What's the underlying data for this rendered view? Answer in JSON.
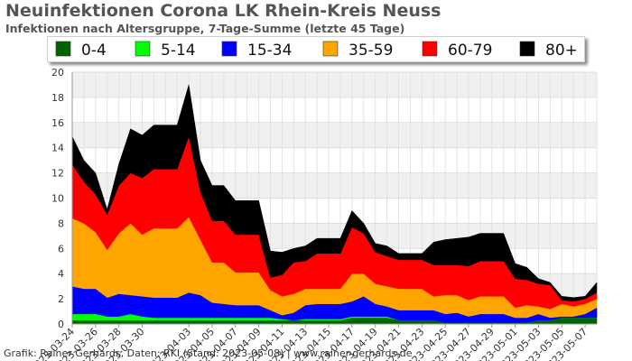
{
  "title": "Neuinfektionen Corona LK Rhein-Kreis Neuss",
  "subtitle": "Infektionen nach Altersgruppe, 7-Tage-Summe (letzte 45 Tage)",
  "credit": "Grafik: Rainer Gerhards, Daten: RKI (Stand: 2023-05-08) | www.rainer-gerhards.de",
  "chart_data": {
    "type": "area",
    "stacked": true,
    "title": "Neuinfektionen Corona LK Rhein-Kreis Neuss",
    "subtitle": "Infektionen nach Altersgruppe, 7-Tage-Summe (letzte 45 Tage)",
    "xlabel": "",
    "ylabel": "",
    "ylim": [
      0,
      20
    ],
    "yticks": [
      0,
      2,
      4,
      6,
      8,
      10,
      12,
      14,
      16,
      18,
      20
    ],
    "grid": true,
    "legend_position": "top",
    "x": [
      "2023-03-24",
      "2023-03-25",
      "2023-03-26",
      "2023-03-27",
      "2023-03-28",
      "2023-03-29",
      "2023-03-30",
      "2023-03-31",
      "2023-04-01",
      "2023-04-02",
      "2023-04-03",
      "2023-04-04",
      "2023-04-05",
      "2023-04-06",
      "2023-04-07",
      "2023-04-08",
      "2023-04-09",
      "2023-04-10",
      "2023-04-11",
      "2023-04-12",
      "2023-04-13",
      "2023-04-14",
      "2023-04-15",
      "2023-04-16",
      "2023-04-17",
      "2023-04-18",
      "2023-04-19",
      "2023-04-20",
      "2023-04-21",
      "2023-04-22",
      "2023-04-23",
      "2023-04-24",
      "2023-04-25",
      "2023-04-26",
      "2023-04-27",
      "2023-04-28",
      "2023-04-29",
      "2023-04-30",
      "2023-05-01",
      "2023-05-02",
      "2023-05-03",
      "2023-05-04",
      "2023-05-05",
      "2023-05-06",
      "2023-05-07",
      "2023-05-08"
    ],
    "xtick_labels": [
      "2023-03-24",
      "2023-03-26",
      "2023-03-28",
      "2023-03-30",
      "2023-04-03",
      "2023-04-05",
      "2023-04-07",
      "2023-04-09",
      "2023-04-11",
      "2023-04-13",
      "2023-04-15",
      "2023-04-17",
      "2023-04-19",
      "2023-04-21",
      "2023-04-23",
      "2023-04-25",
      "2023-04-27",
      "2023-04-29",
      "2023-05-01",
      "2023-05-03",
      "2023-05-05",
      "2023-05-07"
    ],
    "series": [
      {
        "name": "0-4",
        "color": "#006400",
        "values": [
          0.3,
          0.3,
          0.3,
          0.3,
          0.3,
          0.3,
          0.3,
          0.3,
          0.3,
          0.3,
          0.3,
          0.3,
          0.3,
          0.3,
          0.3,
          0.3,
          0.3,
          0.3,
          0.3,
          0.3,
          0.3,
          0.3,
          0.3,
          0.3,
          0.5,
          0.5,
          0.5,
          0.5,
          0.3,
          0.3,
          0.3,
          0.3,
          0.1,
          0.1,
          0.1,
          0.1,
          0.1,
          0.1,
          0.1,
          0.1,
          0.3,
          0.3,
          0.5,
          0.5,
          0.5,
          0.5
        ]
      },
      {
        "name": "5-14",
        "color": "#00ff00",
        "values": [
          0.5,
          0.5,
          0.5,
          0.3,
          0.3,
          0.5,
          0.3,
          0.2,
          0.2,
          0.2,
          0.2,
          0.2,
          0.2,
          0.2,
          0.2,
          0.2,
          0.2,
          0.2,
          0.1,
          0.0,
          0.1,
          0.1,
          0.1,
          0.1,
          0.1,
          0.1,
          0.1,
          0.1,
          0.0,
          0.0,
          0.0,
          0.0,
          0.0,
          0.0,
          0.0,
          0.0,
          0.0,
          0.0,
          0.0,
          0.0,
          0.0,
          0.0,
          0.0,
          0.0,
          0.0,
          0.0
        ]
      },
      {
        "name": "15-34",
        "color": "#0000ff",
        "values": [
          2.2,
          2.0,
          2.0,
          1.5,
          1.8,
          1.5,
          1.6,
          1.6,
          1.6,
          1.6,
          2.0,
          1.8,
          1.2,
          1.1,
          1.0,
          1.0,
          1.0,
          0.6,
          0.3,
          0.6,
          1.1,
          1.2,
          1.2,
          1.2,
          1.2,
          1.6,
          1.0,
          0.8,
          0.8,
          0.8,
          0.8,
          0.8,
          0.7,
          0.8,
          0.5,
          0.7,
          0.7,
          0.7,
          0.4,
          0.4,
          0.5,
          0.2,
          0.1,
          0.1,
          0.3,
          0.8
        ]
      },
      {
        "name": "35-59",
        "color": "#ffa500",
        "values": [
          5.4,
          5.2,
          4.5,
          3.8,
          4.8,
          5.7,
          4.9,
          5.5,
          5.5,
          5.5,
          6.0,
          4.4,
          3.2,
          3.3,
          2.6,
          2.6,
          2.6,
          1.6,
          1.5,
          1.5,
          1.3,
          1.2,
          1.2,
          1.2,
          2.2,
          1.8,
          1.6,
          1.6,
          1.7,
          1.7,
          1.7,
          1.1,
          1.5,
          1.4,
          1.3,
          1.4,
          1.4,
          1.4,
          0.8,
          1.0,
          0.6,
          0.7,
          1.0,
          0.8,
          0.8,
          0.7
        ]
      },
      {
        "name": "60-79",
        "color": "#ff0000",
        "values": [
          4.3,
          3.3,
          3.0,
          2.8,
          3.8,
          4.0,
          4.5,
          4.7,
          4.7,
          4.7,
          6.4,
          3.8,
          3.3,
          3.3,
          3.0,
          3.0,
          3.0,
          1.0,
          1.7,
          2.5,
          2.2,
          2.8,
          2.8,
          2.8,
          3.7,
          3.2,
          2.5,
          2.4,
          2.3,
          2.3,
          2.3,
          2.5,
          2.4,
          2.4,
          2.7,
          2.8,
          2.8,
          2.8,
          2.3,
          2.0,
          1.8,
          1.9,
          0.3,
          0.4,
          0.4,
          0.5
        ]
      },
      {
        "name": "80+",
        "color": "#000000",
        "values": [
          2.2,
          1.7,
          1.7,
          0.4,
          1.7,
          3.5,
          3.4,
          3.5,
          3.5,
          3.5,
          4.1,
          2.5,
          2.8,
          2.8,
          2.7,
          2.7,
          2.7,
          2.1,
          1.8,
          1.1,
          1.2,
          1.2,
          1.2,
          1.2,
          1.3,
          0.8,
          0.7,
          0.8,
          0.5,
          0.5,
          0.5,
          1.8,
          2.0,
          2.1,
          2.3,
          2.2,
          2.2,
          2.2,
          1.2,
          1.0,
          0.4,
          0.2,
          0.3,
          0.3,
          0.2,
          0.8
        ]
      }
    ]
  }
}
